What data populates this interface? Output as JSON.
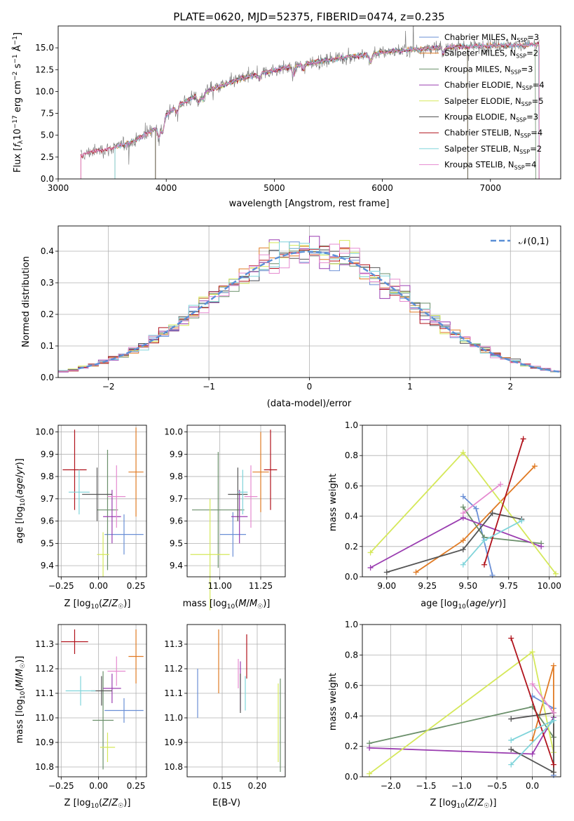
{
  "colors": [
    "#6a8fd6",
    "#e07b24",
    "#6a8f6a",
    "#9a3db0",
    "#d5e85a",
    "#555555",
    "#b0121b",
    "#7fd4da",
    "#e58ad0"
  ],
  "chart_data": [
    {
      "id": "spectrum",
      "type": "line",
      "title": "PLATE=0620, MJD=52375, FIBERID=0474, z=0.235",
      "xlabel": "wavelength [Angstrom, rest frame]",
      "ylabel": "Flux [f_λ 10⁻¹⁷ erg cm⁻² s⁻¹ Å⁻¹]",
      "xlim": [
        3000,
        7650
      ],
      "ylim": [
        0,
        17.5
      ],
      "xticks": [
        3000,
        4000,
        5000,
        6000,
        7000
      ],
      "yticks": [
        0.0,
        2.5,
        5.0,
        7.5,
        10.0,
        12.5,
        15.0
      ],
      "grid": false,
      "legend_position": "top-right",
      "continuum": {
        "x": [
          3210,
          3300,
          3500,
          3700,
          3900,
          4000,
          4100,
          4300,
          4500,
          4700,
          4900,
          5100,
          5300,
          5500,
          5700,
          5900,
          6100,
          6300,
          6500,
          6700,
          6900,
          7100,
          7300,
          7450
        ],
        "y": [
          2.6,
          3.1,
          3.5,
          4.3,
          5.8,
          7.3,
          8.4,
          9.6,
          10.6,
          11.5,
          12.2,
          12.7,
          13.2,
          13.6,
          14.0,
          14.3,
          14.6,
          14.8,
          15.0,
          15.1,
          15.2,
          15.3,
          15.3,
          15.4
        ]
      },
      "series": [
        {
          "name": "Chabrier MILES, N_SSP=3",
          "start": 3525,
          "end": 7450
        },
        {
          "name": "Salpeter MILES, N_SSP=2",
          "start": 3525,
          "end": 7450
        },
        {
          "name": "Kroupa MILES, N_SSP=3",
          "start": 3525,
          "end": 7420
        },
        {
          "name": "Chabrier ELODIE, N_SSP=4",
          "start": 3900,
          "end": 6790
        },
        {
          "name": "Salpeter ELODIE, N_SSP=5",
          "start": 3900,
          "end": 6790
        },
        {
          "name": "Kroupa ELODIE, N_SSP=3",
          "start": 3900,
          "end": 6790
        },
        {
          "name": "Chabrier STELIB, N_SSP=4",
          "start": 3210,
          "end": 7450
        },
        {
          "name": "Salpeter STELIB, N_SSP=2",
          "start": 3525,
          "end": 7450
        },
        {
          "name": "Kroupa STELIB, N_SSP=4",
          "start": 3210,
          "end": 7450
        }
      ]
    },
    {
      "id": "residuals",
      "type": "histogram",
      "xlabel": "(data-model)/error",
      "ylabel": "Normed distribution",
      "xlim": [
        -2.5,
        2.5
      ],
      "ylim": [
        0,
        0.48
      ],
      "xticks": [
        -2,
        -1,
        0,
        1,
        2
      ],
      "yticks": [
        0.0,
        0.1,
        0.2,
        0.3,
        0.4
      ],
      "grid": true,
      "bin_width": 0.1,
      "reference_curve": {
        "name": "𝒩(0,1)",
        "style": "dashed",
        "color": "#5a8fd6"
      },
      "legend_position": "top-right"
    },
    {
      "id": "age-vs-Z",
      "type": "scatter",
      "xlabel": "Z [log₁₀(Z/Z☉)]",
      "ylabel": "age  [log₁₀(age/yr)]",
      "xlim": [
        -0.27,
        0.32
      ],
      "ylim": [
        9.35,
        10.03
      ],
      "xticks": [
        -0.25,
        0.0,
        0.25
      ],
      "yticks": [
        9.4,
        9.5,
        9.6,
        9.7,
        9.8,
        9.9,
        10.0
      ],
      "grid": true,
      "points": [
        {
          "x": 0.17,
          "y": 9.54,
          "xerr": 0.13,
          "yerr": 0.09
        },
        {
          "x": 0.25,
          "y": 9.82,
          "xerr": 0.05,
          "yerr": 0.2
        },
        {
          "x": 0.06,
          "y": 9.65,
          "xerr": 0.07,
          "yerr": 0.27
        },
        {
          "x": 0.09,
          "y": 9.62,
          "xerr": 0.06,
          "yerr": 0.12
        },
        {
          "x": 0.03,
          "y": 9.45,
          "xerr": 0.04,
          "yerr": 0.1
        },
        {
          "x": -0.01,
          "y": 9.72,
          "xerr": 0.1,
          "yerr": 0.12
        },
        {
          "x": -0.16,
          "y": 9.83,
          "xerr": 0.08,
          "yerr": 0.18
        },
        {
          "x": -0.13,
          "y": 9.73,
          "xerr": 0.07,
          "yerr": 0.1
        },
        {
          "x": 0.12,
          "y": 9.71,
          "xerr": 0.06,
          "yerr": 0.14
        }
      ]
    },
    {
      "id": "age-vs-mass",
      "type": "scatter",
      "xlabel": "mass [log₁₀(M/M☉)]",
      "xlim": [
        10.8,
        11.4
      ],
      "ylim": [
        9.35,
        10.03
      ],
      "xticks": [
        11.0,
        11.25
      ],
      "yticks": [
        9.4,
        9.5,
        9.6,
        9.7,
        9.8,
        9.9,
        10.0
      ],
      "grid": true,
      "points": [
        {
          "x": 11.08,
          "y": 9.54,
          "xerr": 0.08,
          "yerr": 0.1
        },
        {
          "x": 11.25,
          "y": 9.82,
          "xerr": 0.05,
          "yerr": 0.18
        },
        {
          "x": 10.99,
          "y": 9.65,
          "xerr": 0.16,
          "yerr": 0.26
        },
        {
          "x": 11.12,
          "y": 9.62,
          "xerr": 0.05,
          "yerr": 0.12
        },
        {
          "x": 10.94,
          "y": 9.45,
          "xerr": 0.12,
          "yerr": 0.25
        },
        {
          "x": 11.11,
          "y": 9.72,
          "xerr": 0.06,
          "yerr": 0.12
        },
        {
          "x": 11.31,
          "y": 9.83,
          "xerr": 0.04,
          "yerr": 0.18
        },
        {
          "x": 11.14,
          "y": 9.73,
          "xerr": 0.03,
          "yerr": 0.1
        },
        {
          "x": 11.19,
          "y": 9.71,
          "xerr": 0.04,
          "yerr": 0.14
        }
      ]
    },
    {
      "id": "weight-vs-age",
      "type": "line",
      "xlabel": "age  [log₁₀(age/yr)]",
      "ylabel": "mass weight",
      "xlim": [
        8.85,
        10.07
      ],
      "ylim": [
        0,
        1.0
      ],
      "xticks": [
        9.0,
        9.25,
        9.5,
        9.75,
        10.0
      ],
      "yticks": [
        0.0,
        0.2,
        0.4,
        0.6,
        0.8,
        1.0
      ],
      "grid": true,
      "series": [
        {
          "x": [
            9.47,
            9.55,
            9.65
          ],
          "y": [
            0.53,
            0.45,
            0.01
          ]
        },
        {
          "x": [
            9.18,
            9.47,
            9.91
          ],
          "y": [
            0.03,
            0.24,
            0.73
          ]
        },
        {
          "x": [
            9.47,
            9.6,
            9.95
          ],
          "y": [
            0.46,
            0.26,
            0.22
          ]
        },
        {
          "x": [
            8.9,
            9.47,
            9.95
          ],
          "y": [
            0.06,
            0.39,
            0.2
          ]
        },
        {
          "x": [
            8.9,
            9.47,
            10.04
          ],
          "y": [
            0.16,
            0.82,
            0.02
          ]
        },
        {
          "x": [
            9.0,
            9.47,
            9.65,
            9.83
          ],
          "y": [
            0.03,
            0.18,
            0.42,
            0.38
          ]
        },
        {
          "x": [
            9.6,
            9.84
          ],
          "y": [
            0.08,
            0.91
          ]
        },
        {
          "x": [
            9.47,
            9.6,
            9.83
          ],
          "y": [
            0.08,
            0.24,
            0.37
          ]
        },
        {
          "x": [
            9.47,
            9.7
          ],
          "y": [
            0.42,
            0.61
          ]
        }
      ]
    },
    {
      "id": "mass-vs-Z",
      "type": "scatter",
      "xlabel": "Z [log₁₀(Z/Z☉)]",
      "ylabel": "mass [log₁₀(M/M☉)]",
      "xlim": [
        -0.27,
        0.32
      ],
      "ylim": [
        10.76,
        11.38
      ],
      "xticks": [
        -0.25,
        0.0,
        0.25
      ],
      "yticks": [
        10.8,
        10.9,
        11.0,
        11.1,
        11.2,
        11.3
      ],
      "grid": true,
      "points": [
        {
          "x": 0.17,
          "y": 11.03,
          "xerr": 0.13,
          "yerr": 0.05
        },
        {
          "x": 0.25,
          "y": 11.25,
          "xerr": 0.05,
          "yerr": 0.11
        },
        {
          "x": 0.03,
          "y": 10.99,
          "xerr": 0.07,
          "yerr": 0.2
        },
        {
          "x": 0.09,
          "y": 11.12,
          "xerr": 0.06,
          "yerr": 0.06
        },
        {
          "x": 0.06,
          "y": 10.88,
          "xerr": 0.05,
          "yerr": 0.06
        },
        {
          "x": 0.02,
          "y": 11.11,
          "xerr": 0.07,
          "yerr": 0.06
        },
        {
          "x": -0.16,
          "y": 11.31,
          "xerr": 0.09,
          "yerr": 0.05
        },
        {
          "x": -0.12,
          "y": 11.11,
          "xerr": 0.1,
          "yerr": 0.06
        },
        {
          "x": 0.12,
          "y": 11.19,
          "xerr": 0.06,
          "yerr": 0.06
        }
      ]
    },
    {
      "id": "mass-vs-EBV",
      "type": "scatter",
      "xlabel": "E(B-V)",
      "xlim": [
        0.1,
        0.24
      ],
      "ylim": [
        10.76,
        11.38
      ],
      "xticks": [
        0.15,
        0.2
      ],
      "yticks": [
        10.8,
        10.9,
        11.0,
        11.1,
        11.2,
        11.3
      ],
      "grid": true,
      "points": [
        {
          "x": 0.115,
          "y": 11.1,
          "yerr": 0.1
        },
        {
          "x": 0.145,
          "y": 11.23,
          "yerr": 0.13
        },
        {
          "x": 0.233,
          "y": 10.97,
          "yerr": 0.19
        },
        {
          "x": 0.176,
          "y": 11.13,
          "yerr": 0.1
        },
        {
          "x": 0.23,
          "y": 10.98,
          "yerr": 0.16
        },
        {
          "x": 0.176,
          "y": 11.1,
          "yerr": 0.08
        },
        {
          "x": 0.185,
          "y": 11.25,
          "yerr": 0.09
        },
        {
          "x": 0.183,
          "y": 11.1,
          "yerr": 0.07
        },
        {
          "x": 0.173,
          "y": 11.18,
          "yerr": 0.06
        }
      ]
    },
    {
      "id": "weight-vs-Z",
      "type": "line",
      "xlabel": "Z [log₁₀(Z/Z☉)]",
      "ylabel": "mass weight",
      "xlim": [
        -2.4,
        0.4
      ],
      "ylim": [
        0,
        1.0
      ],
      "xticks": [
        -2.0,
        -1.5,
        -1.0,
        -0.5,
        0.0
      ],
      "yticks": [
        0.0,
        0.2,
        0.4,
        0.6,
        0.8,
        1.0
      ],
      "grid": true,
      "series": [
        {
          "x": [
            0.0,
            0.3,
            0.3
          ],
          "y": [
            0.53,
            0.45,
            0.01
          ]
        },
        {
          "x": [
            0.0,
            0.3,
            0.3
          ],
          "y": [
            0.24,
            0.73,
            0.03
          ]
        },
        {
          "x": [
            -2.3,
            0.0,
            0.3
          ],
          "y": [
            0.22,
            0.46,
            0.26
          ]
        },
        {
          "x": [
            -2.3,
            0.0,
            0.3
          ],
          "y": [
            0.19,
            0.15,
            0.39
          ]
        },
        {
          "x": [
            -2.3,
            0.0,
            0.3
          ],
          "y": [
            0.02,
            0.82,
            0.16
          ]
        },
        {
          "x": [
            -0.3,
            0.3,
            0.3,
            -0.3
          ],
          "y": [
            0.18,
            0.03,
            0.42,
            0.38
          ]
        },
        {
          "x": [
            -0.3,
            0.3
          ],
          "y": [
            0.91,
            0.08
          ]
        },
        {
          "x": [
            -0.3,
            0.3,
            -0.3
          ],
          "y": [
            0.24,
            0.37,
            0.08
          ]
        },
        {
          "x": [
            0.0,
            0.3
          ],
          "y": [
            0.61,
            0.42
          ]
        }
      ]
    }
  ]
}
